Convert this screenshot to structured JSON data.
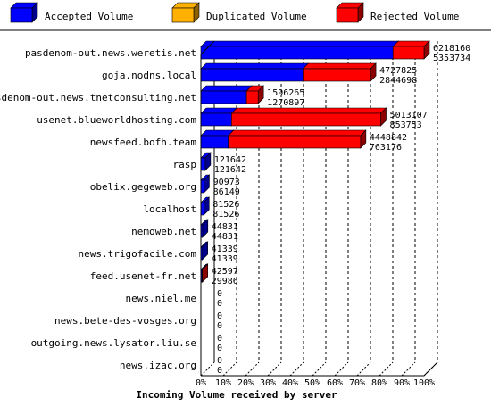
{
  "chart_data": {
    "type": "bar",
    "orientation": "horizontal",
    "stacked": true,
    "three_d": true,
    "xlabel": "Incoming Volume received by server",
    "x_ticks": [
      "0%",
      "10%",
      "20%",
      "30%",
      "40%",
      "50%",
      "60%",
      "70%",
      "80%",
      "90%",
      "100%"
    ],
    "xlim": [
      0,
      100
    ],
    "grid": "vertical-dashed",
    "legend_position": "top",
    "legend": [
      {
        "name": "Accepted Volume",
        "color": "#0000ff"
      },
      {
        "name": "Duplicated Volume",
        "color": "#ffb000"
      },
      {
        "name": "Rejected Volume",
        "color": "#ff0000"
      }
    ],
    "scale_max_total": 6218160,
    "categories": [
      "pasdenom-out.news.weretis.net",
      "goja.nodns.local",
      "pasdenom-out.news.tnetconsulting.net",
      "usenet.blueworldhosting.com",
      "newsfeed.bofh.team",
      "rasp",
      "obelix.gegeweb.org",
      "localhost",
      "nemoweb.net",
      "news.trigofacile.com",
      "feed.usenet-fr.net",
      "news.niel.me",
      "news.bete-des-vosges.org",
      "outgoing.news.lysator.liu.se",
      "news.izac.org"
    ],
    "totals": [
      6218160,
      4727825,
      1596265,
      5013107,
      4448842,
      121642,
      90973,
      81526,
      44831,
      41339,
      42597,
      0,
      0,
      0,
      0
    ],
    "accepted": [
      5353734,
      2844698,
      1270897,
      853753,
      763176,
      121642,
      86149,
      81526,
      44831,
      41339,
      29986,
      0,
      0,
      0,
      0
    ]
  }
}
